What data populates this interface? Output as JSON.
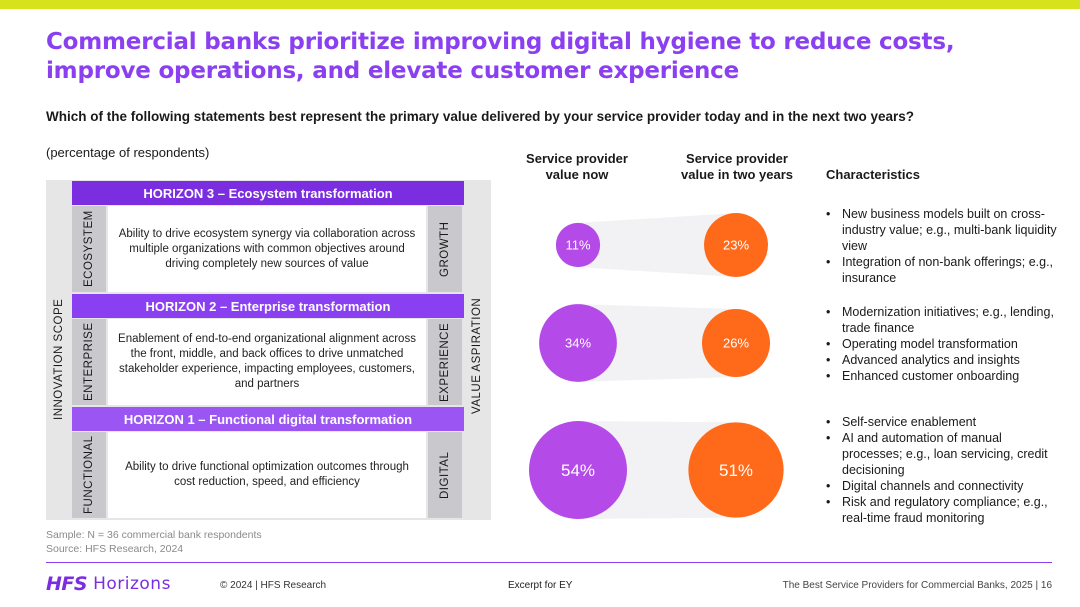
{
  "title": "Commercial banks prioritize improving digital hygiene to reduce costs, improve operations, and elevate customer experience",
  "question": "Which of the following statements best represent the primary value delivered by your service provider today and in the next two years?",
  "question_sub": "(percentage of respondents)",
  "framework": {
    "scope_label": "INNOVATION SCOPE",
    "aspiration_label": "VALUE ASPIRATION",
    "horizons": [
      {
        "bar": "HORIZON 3 – Ecosystem transformation",
        "scope": "ECOSYSTEM",
        "aspiration": "GROWTH",
        "description": "Ability to drive ecosystem synergy via collaboration across multiple organizations with common objectives around driving completely new sources of value"
      },
      {
        "bar": "HORIZON 2 – Enterprise transformation",
        "scope": "ENTERPRISE",
        "aspiration": "EXPERIENCE",
        "description": "Enablement of end-to-end organizational alignment across the front, middle, and back offices to drive unmatched stakeholder experience, impacting employees, customers, and partners"
      },
      {
        "bar": "HORIZON 1 – Functional digital transformation",
        "scope": "FUNCTIONAL",
        "aspiration": "DIGITAL",
        "description": "Ability to drive functional optimization outcomes through cost reduction, speed, and efficiency"
      }
    ]
  },
  "columns": {
    "now": "Service provider value now",
    "future": "Service provider value in two years",
    "characteristics": "Characteristics"
  },
  "chart_data": {
    "type": "bubble",
    "categories": [
      "HORIZON 3 – Ecosystem transformation",
      "HORIZON 2 – Enterprise transformation",
      "HORIZON 1 – Functional digital transformation"
    ],
    "series": [
      {
        "name": "Service provider value now",
        "values": [
          11,
          34,
          54
        ],
        "labels": [
          "11%",
          "34%",
          "54%"
        ]
      },
      {
        "name": "Service provider value in two years",
        "values": [
          23,
          26,
          51
        ],
        "labels": [
          "23%",
          "26%",
          "51%"
        ]
      }
    ],
    "colors": {
      "now": "#b44ae8",
      "future": "#ff6a1a",
      "connector": "#f2f2f4"
    }
  },
  "characteristics": [
    [
      "New business models built on cross-industry value; e.g., multi-bank liquidity view",
      "Integration of non-bank offerings; e.g., insurance"
    ],
    [
      "Modernization initiatives; e.g., lending, trade finance",
      "Operating model transformation",
      "Advanced analytics and insights",
      "Enhanced customer onboarding"
    ],
    [
      "Self-service enablement",
      "AI and automation of manual processes; e.g., loan servicing, credit decisioning",
      "Digital channels and connectivity",
      "Risk and regulatory compliance; e.g., real-time fraud monitoring"
    ]
  ],
  "sample": "Sample: N = 36 commercial bank respondents",
  "source": "Source: HFS Research, 2024",
  "footer": {
    "logo_main": "HFS",
    "logo_sub": "Horizons",
    "copyright": "© 2024 | HFS Research",
    "excerpt": "Excerpt for EY",
    "report": "The Best Service Providers for Commercial Banks, 2025 | 16"
  }
}
